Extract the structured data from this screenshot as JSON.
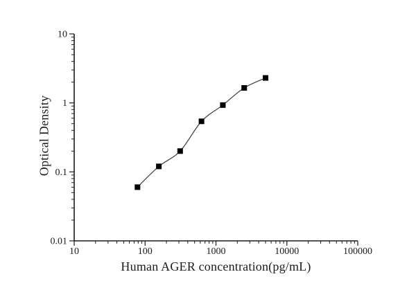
{
  "page": {
    "background_color": "#ffffff",
    "text_color": "#1a1a1a"
  },
  "chart_data": {
    "type": "line",
    "title": "",
    "xlabel": "Human AGER concentration(pg/mL)",
    "ylabel": "Optical Density",
    "x_scale": "log",
    "y_scale": "log",
    "xlim": [
      10,
      100000
    ],
    "ylim": [
      0.01,
      10
    ],
    "x_ticks": [
      10,
      100,
      1000,
      10000,
      100000
    ],
    "x_tick_labels": [
      "10",
      "100",
      "1000",
      "10000",
      "100000"
    ],
    "y_ticks": [
      10,
      1,
      0.1,
      0.01
    ],
    "y_tick_labels": [
      "10",
      "1",
      "0.1",
      "0.01"
    ],
    "grid": false,
    "legend": false,
    "series": [
      {
        "x": [
          78.13,
          156.25,
          312.5,
          625,
          1250,
          2500,
          5000
        ],
        "y": [
          0.06,
          0.12,
          0.2,
          0.54,
          0.93,
          1.65,
          2.3
        ],
        "marker": "filled-square",
        "marker_color": "#000000",
        "line_color": "#3d3d3d"
      }
    ],
    "axis_color": "#1a1a1a",
    "tick_label_font_size": 14
  }
}
